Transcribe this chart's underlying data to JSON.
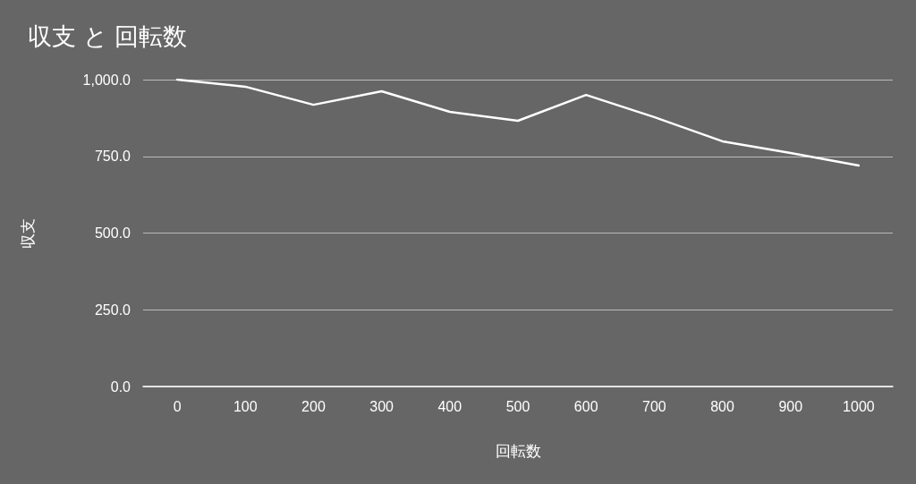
{
  "chart_data": {
    "type": "line",
    "title": "収支 と 回転数",
    "xlabel": "回転数",
    "ylabel": "収支",
    "categories": [
      "0",
      "100",
      "200",
      "300",
      "400",
      "500",
      "600",
      "700",
      "800",
      "900",
      "1000"
    ],
    "series": [
      {
        "color": "#ffffff",
        "values": [
          1000,
          977,
          918,
          962,
          895,
          866,
          950,
          878,
          799,
          761,
          720
        ]
      }
    ],
    "ylim": [
      0,
      1000
    ],
    "yticks": [
      {
        "value": 0,
        "label": "0.0"
      },
      {
        "value": 250,
        "label": "250.0"
      },
      {
        "value": 500,
        "label": "500.0"
      },
      {
        "value": 750,
        "label": "750.0"
      },
      {
        "value": 1000,
        "label": "1,000.0"
      }
    ],
    "grid": "y",
    "marker": "none",
    "line_style": "solid"
  }
}
